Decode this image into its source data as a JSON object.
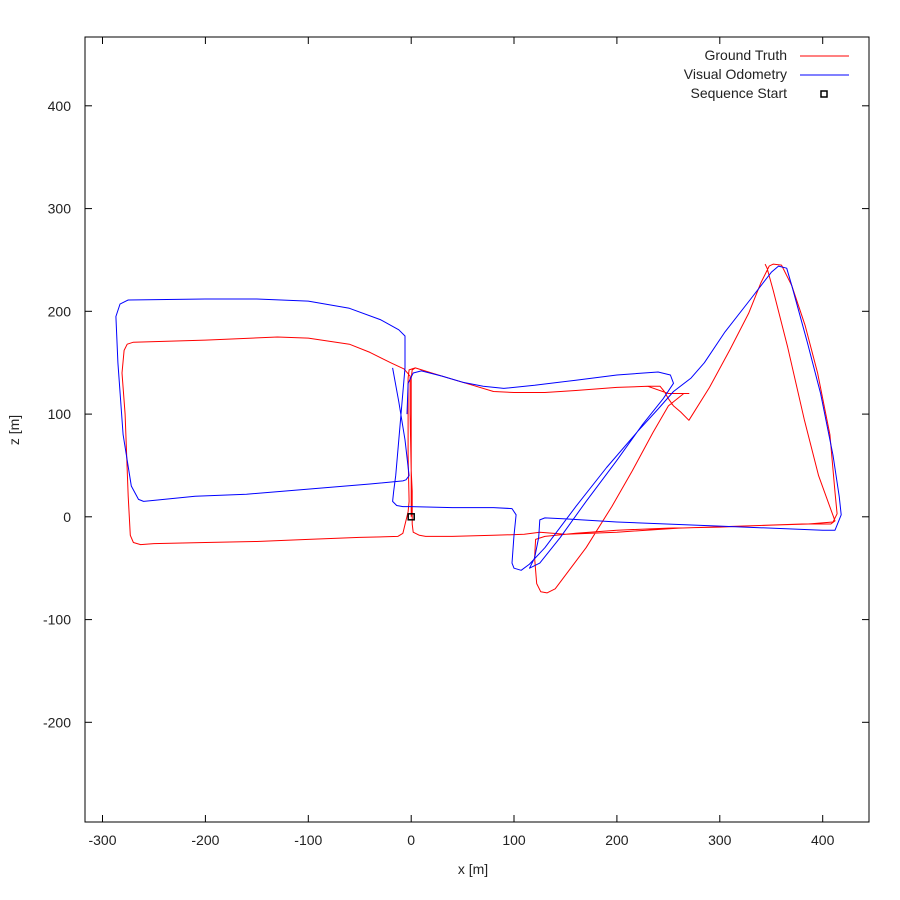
{
  "chart_data": {
    "type": "line",
    "title": "",
    "xlabel": "x [m]",
    "ylabel": "z [m]",
    "xlim": [
      -317,
      445
    ],
    "ylim": [
      -297,
      467
    ],
    "xticks": [
      -300,
      -200,
      -100,
      0,
      100,
      200,
      300,
      400
    ],
    "yticks": [
      -200,
      -100,
      0,
      100,
      200,
      300,
      400
    ],
    "grid": false,
    "legend_position": "top-right",
    "series": [
      {
        "name": "Ground Truth",
        "color": "#ff0000",
        "marker": "line",
        "points": [
          [
            0,
            0
          ],
          [
            0,
            135
          ],
          [
            1,
            143
          ],
          [
            4,
            145
          ],
          [
            20,
            140
          ],
          [
            40,
            134
          ],
          [
            60,
            128
          ],
          [
            80,
            122
          ],
          [
            100,
            121
          ],
          [
            130,
            121
          ],
          [
            160,
            123
          ],
          [
            200,
            126
          ],
          [
            230,
            127
          ],
          [
            242,
            127
          ],
          [
            246,
            122
          ],
          [
            250,
            115
          ],
          [
            255,
            108
          ],
          [
            262,
            102
          ],
          [
            270,
            94
          ],
          [
            290,
            126
          ],
          [
            310,
            163
          ],
          [
            328,
            198
          ],
          [
            340,
            228
          ],
          [
            348,
            244
          ],
          [
            352,
            246
          ],
          [
            360,
            245
          ],
          [
            370,
            225
          ],
          [
            383,
            186
          ],
          [
            395,
            140
          ],
          [
            407,
            80
          ],
          [
            412,
            24
          ],
          [
            414,
            3
          ],
          [
            410,
            -5
          ],
          [
            386,
            -7
          ],
          [
            350,
            -8
          ],
          [
            300,
            -10
          ],
          [
            250,
            -11
          ],
          [
            200,
            -13
          ],
          [
            160,
            -16
          ],
          [
            130,
            -19
          ],
          [
            121,
            -22
          ],
          [
            120,
            -40
          ],
          [
            122,
            -65
          ],
          [
            126,
            -73
          ],
          [
            132,
            -74
          ],
          [
            140,
            -70
          ],
          [
            170,
            -30
          ],
          [
            195,
            10
          ],
          [
            215,
            45
          ],
          [
            235,
            82
          ],
          [
            250,
            108
          ],
          [
            265,
            120
          ],
          [
            270,
            120
          ],
          [
            250,
            120
          ],
          [
            230,
            127
          ],
          [
            200,
            126
          ],
          [
            160,
            123
          ],
          [
            130,
            121
          ],
          [
            100,
            121
          ],
          [
            80,
            122
          ],
          [
            60,
            128
          ],
          [
            40,
            134
          ],
          [
            20,
            140
          ],
          [
            4,
            145
          ],
          [
            -2,
            143
          ],
          [
            -3,
            135
          ],
          [
            -3,
            60
          ],
          [
            -2,
            15
          ],
          [
            -3,
            5
          ],
          [
            -8,
            -16
          ],
          [
            -13,
            -19
          ],
          [
            -50,
            -20
          ],
          [
            -100,
            -22
          ],
          [
            -150,
            -24
          ],
          [
            -200,
            -25
          ],
          [
            -250,
            -26
          ],
          [
            -263,
            -27
          ],
          [
            -270,
            -25
          ],
          [
            -273,
            -18
          ],
          [
            -275,
            20
          ],
          [
            -278,
            100
          ],
          [
            -281,
            140
          ],
          [
            -279,
            162
          ],
          [
            -276,
            168
          ],
          [
            -270,
            170
          ],
          [
            -200,
            172
          ],
          [
            -130,
            175
          ],
          [
            -100,
            174
          ],
          [
            -60,
            168
          ],
          [
            -40,
            160
          ],
          [
            -20,
            150
          ],
          [
            -7,
            144
          ],
          [
            -1,
            137
          ],
          [
            -1,
            100
          ],
          [
            0,
            45
          ],
          [
            1,
            25
          ],
          [
            1,
            3
          ],
          [
            1,
            -7
          ],
          [
            2,
            -15
          ],
          [
            8,
            -18
          ],
          [
            14,
            -19
          ],
          [
            40,
            -19
          ],
          [
            80,
            -18
          ],
          [
            110,
            -17
          ],
          [
            125,
            -15
          ],
          [
            150,
            -17
          ],
          [
            200,
            -15
          ],
          [
            260,
            -11
          ],
          [
            320,
            -9
          ],
          [
            380,
            -7
          ],
          [
            400,
            -7
          ],
          [
            408,
            -7
          ],
          [
            412,
            -4
          ],
          [
            409,
            4
          ],
          [
            396,
            40
          ],
          [
            382,
            95
          ],
          [
            366,
            165
          ],
          [
            352,
            220
          ],
          [
            346,
            242
          ],
          [
            344,
            246
          ]
        ]
      },
      {
        "name": "Visual Odometry",
        "color": "#0000ff",
        "marker": "line",
        "points": [
          [
            -18,
            145
          ],
          [
            -12,
            112
          ],
          [
            -6,
            75
          ],
          [
            -2,
            40
          ],
          [
            -5,
            36
          ],
          [
            -8,
            35
          ],
          [
            -40,
            32
          ],
          [
            -100,
            27
          ],
          [
            -160,
            22
          ],
          [
            -210,
            20
          ],
          [
            -250,
            16
          ],
          [
            -260,
            15
          ],
          [
            -265,
            17
          ],
          [
            -272,
            30
          ],
          [
            -280,
            80
          ],
          [
            -285,
            150
          ],
          [
            -287,
            195
          ],
          [
            -283,
            207
          ],
          [
            -275,
            211
          ],
          [
            -200,
            212
          ],
          [
            -150,
            212
          ],
          [
            -100,
            210
          ],
          [
            -60,
            203
          ],
          [
            -30,
            192
          ],
          [
            -12,
            182
          ],
          [
            -6,
            176
          ],
          [
            -6,
            145
          ],
          [
            -9,
            110
          ],
          [
            -12,
            75
          ],
          [
            -15,
            40
          ],
          [
            -17,
            25
          ],
          [
            -18,
            15
          ],
          [
            -14,
            11
          ],
          [
            -8,
            10
          ],
          [
            0,
            10
          ],
          [
            40,
            9
          ],
          [
            80,
            9
          ],
          [
            98,
            8
          ],
          [
            102,
            2
          ],
          [
            100,
            -18
          ],
          [
            98,
            -45
          ],
          [
            100,
            -50
          ],
          [
            107,
            -52
          ],
          [
            115,
            -46
          ],
          [
            130,
            -30
          ],
          [
            160,
            10
          ],
          [
            190,
            48
          ],
          [
            220,
            83
          ],
          [
            240,
            105
          ],
          [
            255,
            122
          ],
          [
            272,
            135
          ],
          [
            285,
            150
          ],
          [
            305,
            180
          ],
          [
            330,
            212
          ],
          [
            350,
            238
          ],
          [
            357,
            244
          ],
          [
            365,
            242
          ],
          [
            370,
            225
          ],
          [
            385,
            170
          ],
          [
            398,
            120
          ],
          [
            410,
            60
          ],
          [
            416,
            20
          ],
          [
            418,
            2
          ],
          [
            412,
            -13
          ],
          [
            400,
            -13
          ],
          [
            300,
            -9
          ],
          [
            200,
            -5
          ],
          [
            150,
            -2
          ],
          [
            130,
            -1
          ],
          [
            125,
            -3
          ],
          [
            124,
            -20
          ],
          [
            120,
            -40
          ],
          [
            115,
            -50
          ],
          [
            125,
            -45
          ],
          [
            145,
            -20
          ],
          [
            170,
            15
          ],
          [
            200,
            55
          ],
          [
            225,
            90
          ],
          [
            245,
            115
          ],
          [
            255,
            130
          ],
          [
            252,
            138
          ],
          [
            240,
            141
          ],
          [
            200,
            138
          ],
          [
            160,
            133
          ],
          [
            120,
            128
          ],
          [
            90,
            125
          ],
          [
            70,
            127
          ],
          [
            50,
            131
          ],
          [
            30,
            137
          ],
          [
            10,
            142
          ],
          [
            2,
            140
          ],
          [
            -3,
            130
          ],
          [
            -4,
            100
          ]
        ]
      },
      {
        "name": "Sequence Start",
        "color": "#000000",
        "marker": "open-square",
        "points": [
          [
            0,
            0
          ]
        ]
      }
    ]
  }
}
